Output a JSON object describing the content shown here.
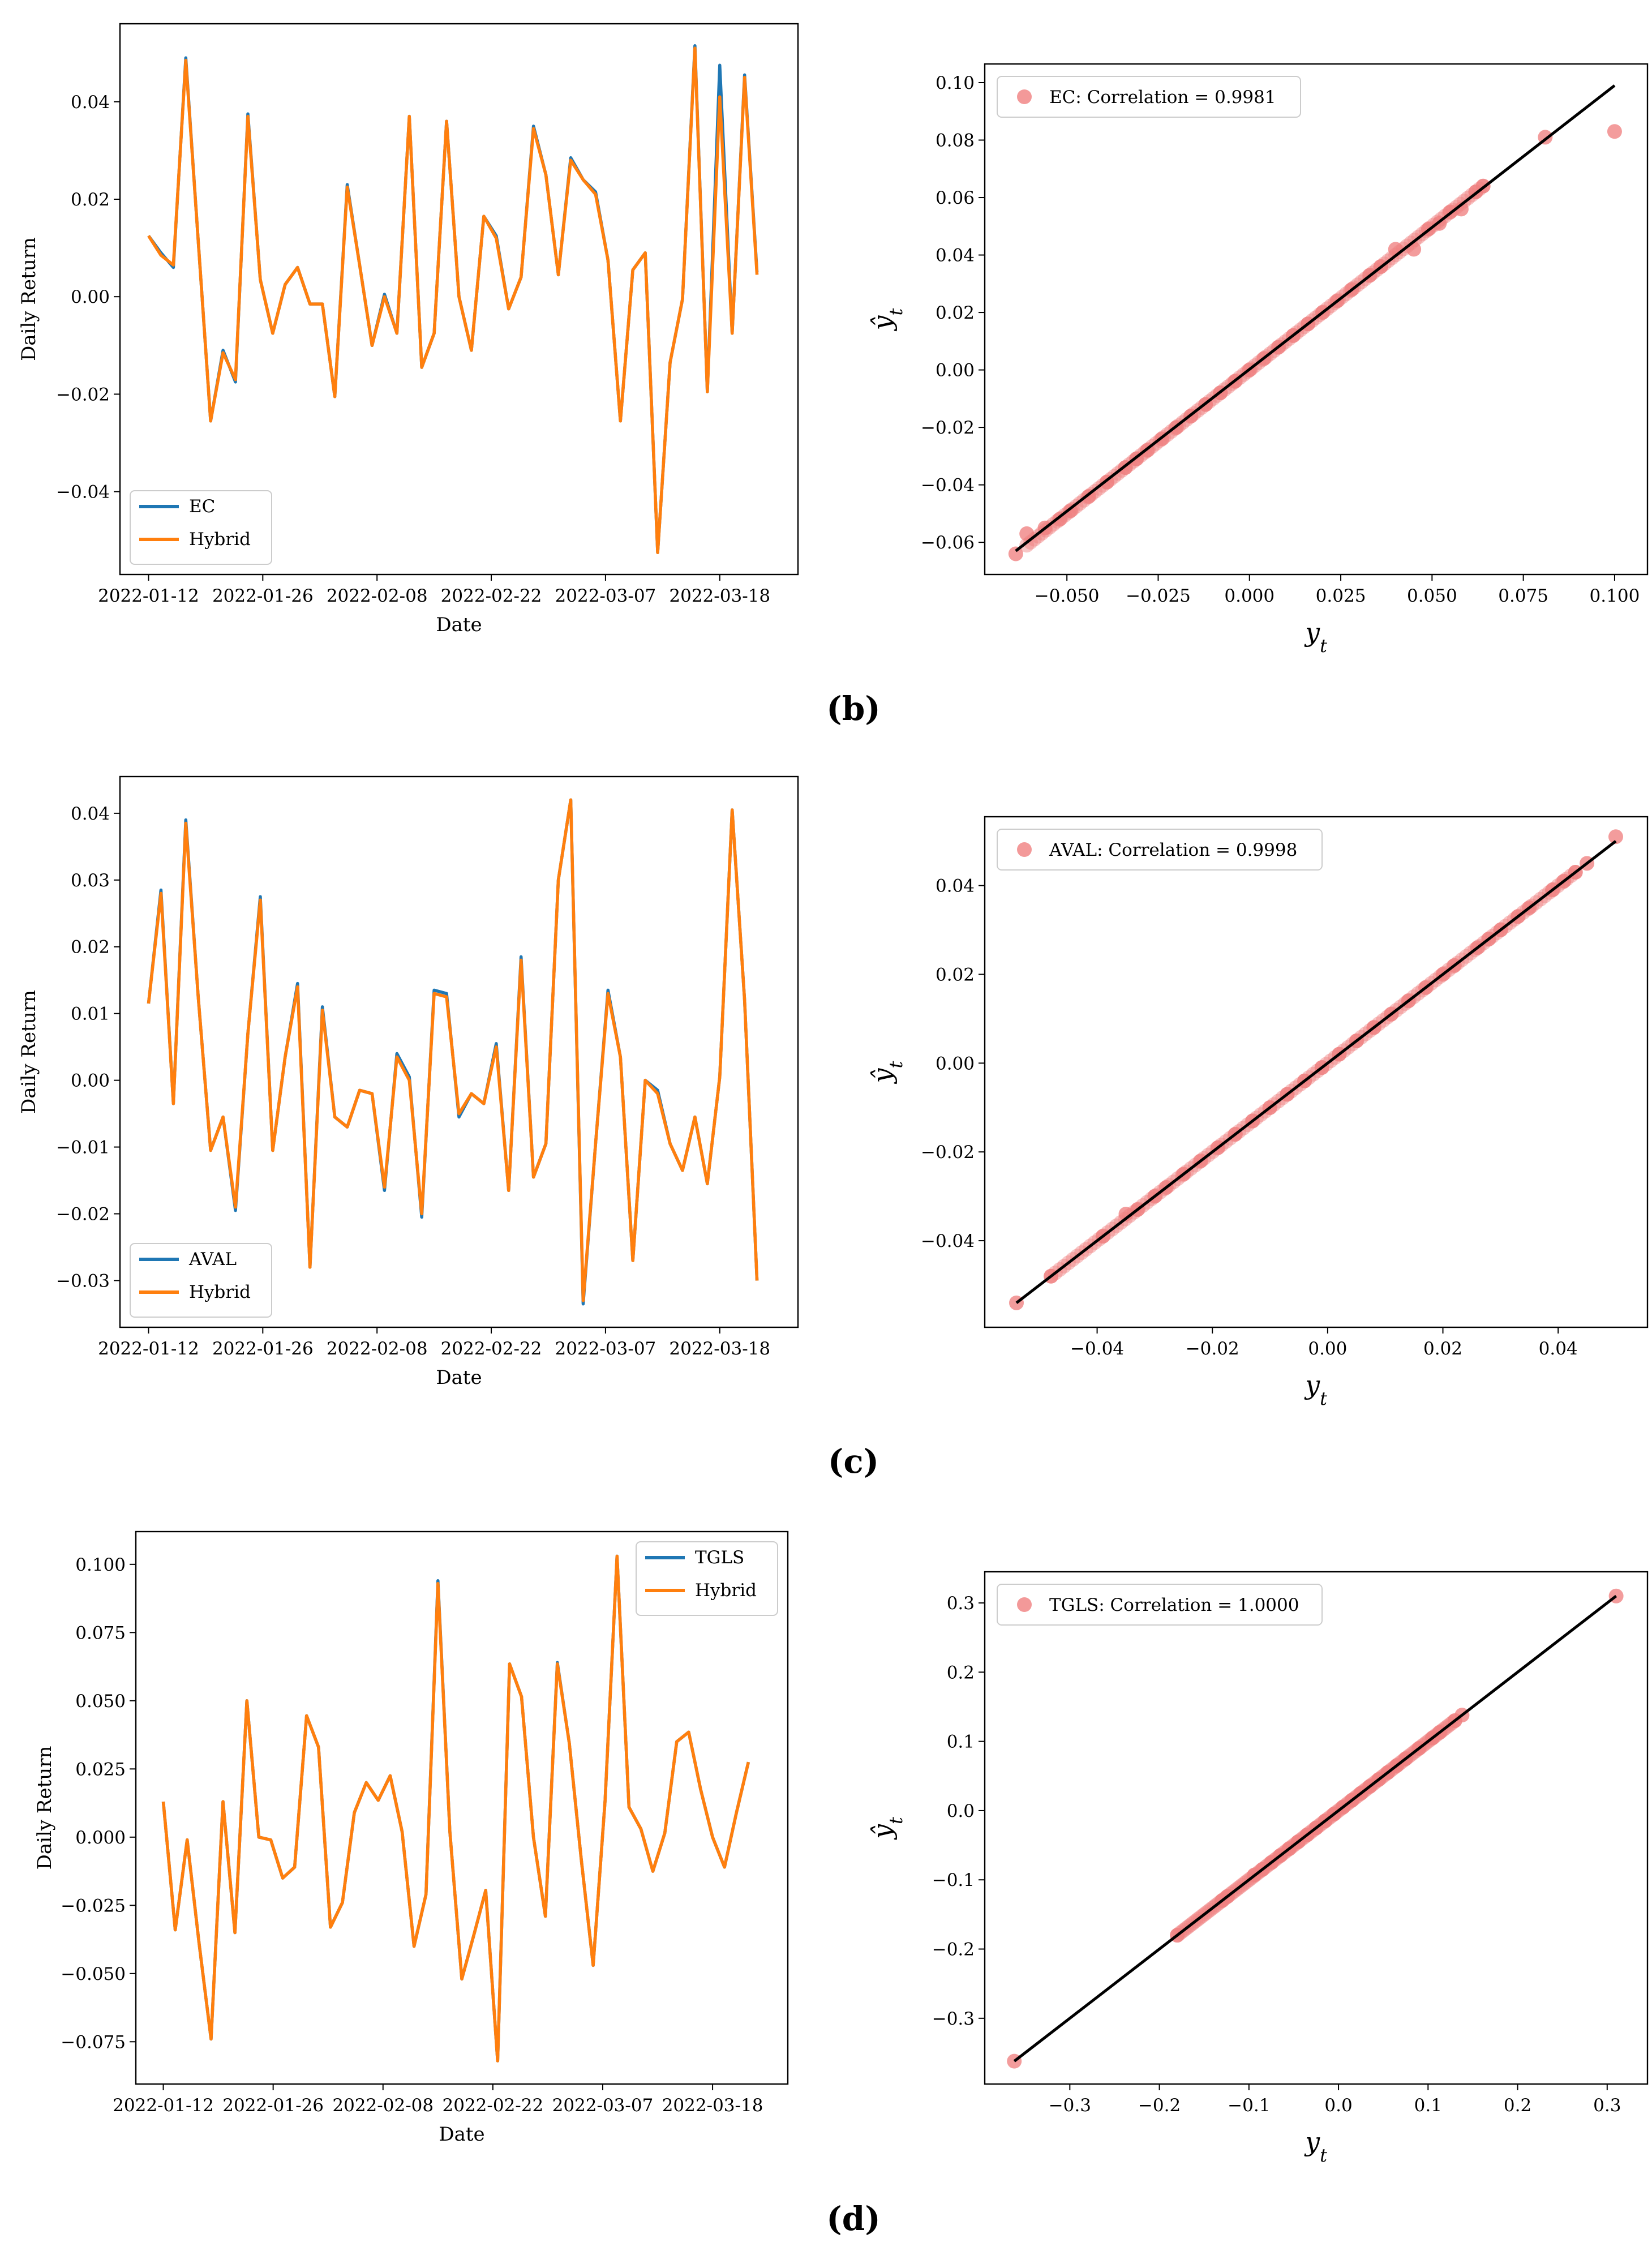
{
  "colors": {
    "actual_line": "#1f77b4",
    "hybrid_line": "#ff7f0e",
    "scatter_point": "#f08080",
    "fit_line": "#000000",
    "axes": "#000000",
    "background": "#ffffff"
  },
  "panel_labels": [
    "(b)",
    "(c)",
    "(d)"
  ],
  "chart_data": [
    {
      "type": "line",
      "panel": "(b)",
      "xlabel": "Date",
      "ylabel": "Daily Return",
      "legend_position": "lower-left",
      "tick_labels_x": [
        "2022-01-12",
        "2022-01-26",
        "2022-02-08",
        "2022-02-22",
        "2022-03-07",
        "2022-03-18"
      ],
      "tick_labels_y": [
        "−0.04",
        "−0.02",
        "0.00",
        "0.02",
        "0.04"
      ],
      "yticks": [
        -0.04,
        -0.02,
        0.0,
        0.02,
        0.04
      ],
      "ylim": [
        -0.057,
        0.056
      ],
      "x": [
        0,
        1,
        2,
        3,
        4,
        5,
        6,
        7,
        8,
        9,
        10,
        11,
        12,
        13,
        14,
        15,
        16,
        17,
        18,
        19,
        20,
        21,
        22,
        23,
        24,
        25,
        26,
        27,
        28,
        29,
        30,
        31,
        32,
        33,
        34,
        35,
        36,
        37,
        38,
        39,
        40,
        41,
        42,
        43,
        44,
        45,
        46,
        47,
        48,
        49
      ],
      "xlim": [
        -2.3,
        52.3
      ],
      "series": [
        {
          "name": "EC",
          "values": [
            0.0125,
            0.009,
            0.006,
            0.049,
            0.0115,
            -0.0255,
            -0.011,
            -0.0175,
            0.0375,
            0.0035,
            -0.0075,
            0.0025,
            0.006,
            -0.0015,
            -0.0015,
            -0.0205,
            0.023,
            0.0065,
            -0.01,
            0.0005,
            -0.0075,
            0.037,
            -0.0145,
            -0.0075,
            0.036,
            0.0,
            -0.011,
            0.0165,
            0.0125,
            -0.0025,
            0.004,
            0.035,
            0.025,
            0.0045,
            0.0285,
            0.024,
            0.0215,
            0.0075,
            -0.0255,
            0.0055,
            0.009,
            -0.0525,
            -0.0135,
            -0.0005,
            0.0515,
            -0.0195,
            0.0475,
            -0.0075,
            0.0455,
            0.005
          ]
        },
        {
          "name": "Hybrid",
          "values": [
            0.0125,
            0.0085,
            0.0065,
            0.0485,
            0.0115,
            -0.0255,
            -0.0115,
            -0.017,
            0.037,
            0.0035,
            -0.0075,
            0.0025,
            0.006,
            -0.0015,
            -0.0015,
            -0.0205,
            0.0225,
            0.0065,
            -0.01,
            0.0,
            -0.0075,
            0.037,
            -0.0145,
            -0.0075,
            0.036,
            0.0,
            -0.011,
            0.0165,
            0.012,
            -0.0025,
            0.004,
            0.0345,
            0.025,
            0.0045,
            0.028,
            0.024,
            0.021,
            0.0075,
            -0.0255,
            0.0055,
            0.009,
            -0.0525,
            -0.0135,
            -0.0005,
            0.051,
            -0.0195,
            0.041,
            -0.0075,
            0.045,
            0.0045
          ]
        }
      ]
    },
    {
      "type": "scatter",
      "panel": "(b)",
      "xlabel": "y_t",
      "ylabel": "ŷ_t",
      "legend": "EC: Correlation = 0.9981",
      "legend_position": "top-left",
      "correlation": 0.9981,
      "tick_labels_x": [
        "−0.050",
        "−0.025",
        "0.000",
        "0.025",
        "0.050",
        "0.075",
        "0.100"
      ],
      "tick_labels_y": [
        "−0.06",
        "−0.04",
        "−0.02",
        "0.00",
        "0.02",
        "0.04",
        "0.06",
        "0.08",
        "0.10"
      ],
      "xticks": [
        -0.05,
        -0.025,
        0.0,
        0.025,
        0.05,
        0.075,
        0.1
      ],
      "yticks": [
        -0.06,
        -0.04,
        -0.02,
        0.0,
        0.02,
        0.04,
        0.06,
        0.08,
        0.1
      ],
      "xlim": [
        -0.0725,
        0.109
      ],
      "ylim": [
        -0.0712,
        0.1065
      ],
      "fit_line": {
        "x": [
          -0.064,
          0.1
        ],
        "y": [
          -0.063,
          0.099
        ]
      },
      "points": [
        [
          -0.064,
          -0.064
        ],
        [
          -0.061,
          -0.057
        ],
        [
          -0.056,
          -0.055
        ],
        [
          -0.052,
          -0.052
        ],
        [
          -0.049,
          -0.049
        ],
        [
          -0.044,
          -0.044
        ],
        [
          -0.039,
          -0.039
        ],
        [
          -0.034,
          -0.034
        ],
        [
          -0.031,
          -0.031
        ],
        [
          -0.028,
          -0.028
        ],
        [
          -0.024,
          -0.024
        ],
        [
          -0.02,
          -0.02
        ],
        [
          -0.016,
          -0.016
        ],
        [
          -0.012,
          -0.012
        ],
        [
          -0.008,
          -0.008
        ],
        [
          -0.004,
          -0.004
        ],
        [
          0.0,
          0.0
        ],
        [
          0.004,
          0.004
        ],
        [
          0.008,
          0.008
        ],
        [
          0.012,
          0.012
        ],
        [
          0.016,
          0.016
        ],
        [
          0.02,
          0.02
        ],
        [
          0.024,
          0.024
        ],
        [
          0.028,
          0.028
        ],
        [
          0.033,
          0.033
        ],
        [
          0.036,
          0.036
        ],
        [
          0.04,
          0.042
        ],
        [
          0.045,
          0.042
        ],
        [
          0.049,
          0.049
        ],
        [
          0.052,
          0.051
        ],
        [
          0.055,
          0.055
        ],
        [
          0.058,
          0.056
        ],
        [
          0.062,
          0.062
        ],
        [
          0.064,
          0.064
        ],
        [
          0.081,
          0.081
        ],
        [
          0.1,
          0.083
        ]
      ]
    },
    {
      "type": "line",
      "panel": "(c)",
      "xlabel": "Date",
      "ylabel": "Daily Return",
      "legend_position": "lower-left",
      "tick_labels_x": [
        "2022-01-12",
        "2022-01-26",
        "2022-02-08",
        "2022-02-22",
        "2022-03-07",
        "2022-03-18"
      ],
      "tick_labels_y": [
        "−0.03",
        "−0.02",
        "−0.01",
        "0.00",
        "0.01",
        "0.02",
        "0.03",
        "0.04"
      ],
      "yticks": [
        -0.03,
        -0.02,
        -0.01,
        0.0,
        0.01,
        0.02,
        0.03,
        0.04
      ],
      "ylim": [
        -0.037,
        0.0455
      ],
      "x": [
        0,
        1,
        2,
        3,
        4,
        5,
        6,
        7,
        8,
        9,
        10,
        11,
        12,
        13,
        14,
        15,
        16,
        17,
        18,
        19,
        20,
        21,
        22,
        23,
        24,
        25,
        26,
        27,
        28,
        29,
        30,
        31,
        32,
        33,
        34,
        35,
        36,
        37,
        38,
        39,
        40,
        41,
        42,
        43,
        44,
        45,
        46,
        47,
        48,
        49
      ],
      "xlim": [
        -2.3,
        52.3
      ],
      "series": [
        {
          "name": "AVAL",
          "values": [
            0.0115,
            0.0285,
            -0.0035,
            0.039,
            0.0125,
            -0.0105,
            -0.0055,
            -0.0195,
            0.007,
            0.0275,
            -0.0105,
            0.0035,
            0.0145,
            -0.028,
            0.011,
            -0.0055,
            -0.007,
            -0.0015,
            -0.002,
            -0.0165,
            0.004,
            0.0005,
            -0.0205,
            0.0135,
            0.013,
            -0.0055,
            -0.002,
            -0.0035,
            0.0055,
            -0.0165,
            0.0185,
            -0.0145,
            -0.0095,
            0.03,
            0.042,
            -0.0335,
            -0.0095,
            0.0135,
            0.0035,
            -0.027,
            0.0,
            -0.0015,
            -0.0095,
            -0.0135,
            -0.0055,
            -0.0155,
            0.0005,
            0.0405,
            0.012,
            -0.03
          ]
        },
        {
          "name": "Hybrid",
          "values": [
            0.0115,
            0.028,
            -0.0035,
            0.0385,
            0.0125,
            -0.0105,
            -0.0055,
            -0.019,
            0.007,
            0.027,
            -0.0105,
            0.0035,
            0.014,
            -0.028,
            0.0105,
            -0.0055,
            -0.007,
            -0.0015,
            -0.002,
            -0.016,
            0.0035,
            0.0,
            -0.02,
            0.013,
            0.0125,
            -0.005,
            -0.002,
            -0.0035,
            0.005,
            -0.0165,
            0.018,
            -0.0145,
            -0.0095,
            0.03,
            0.042,
            -0.033,
            -0.0095,
            0.013,
            0.0035,
            -0.027,
            0.0,
            -0.002,
            -0.0095,
            -0.0135,
            -0.0055,
            -0.0155,
            0.0005,
            0.0405,
            0.012,
            -0.03
          ]
        }
      ]
    },
    {
      "type": "scatter",
      "panel": "(c)",
      "xlabel": "y_t",
      "ylabel": "ŷ_t",
      "legend": "AVAL: Correlation = 0.9998",
      "legend_position": "top-left",
      "correlation": 0.9998,
      "tick_labels_x": [
        "−0.04",
        "−0.02",
        "0.00",
        "0.02",
        "0.04"
      ],
      "tick_labels_y": [
        "−0.04",
        "−0.02",
        "0.00",
        "0.02",
        "0.04"
      ],
      "xticks": [
        -0.04,
        -0.02,
        0.0,
        0.02,
        0.04
      ],
      "yticks": [
        -0.04,
        -0.02,
        0.0,
        0.02,
        0.04
      ],
      "xlim": [
        -0.0595,
        0.0555
      ],
      "ylim": [
        -0.0595,
        0.0555
      ],
      "fit_line": {
        "x": [
          -0.054,
          0.05
        ],
        "y": [
          -0.054,
          0.05
        ]
      },
      "points": [
        [
          -0.054,
          -0.054
        ],
        [
          -0.048,
          -0.048
        ],
        [
          -0.039,
          -0.039
        ],
        [
          -0.035,
          -0.034
        ],
        [
          -0.033,
          -0.033
        ],
        [
          -0.03,
          -0.03
        ],
        [
          -0.028,
          -0.028
        ],
        [
          -0.025,
          -0.025
        ],
        [
          -0.022,
          -0.022
        ],
        [
          -0.019,
          -0.019
        ],
        [
          -0.016,
          -0.016
        ],
        [
          -0.013,
          -0.013
        ],
        [
          -0.01,
          -0.01
        ],
        [
          -0.007,
          -0.007
        ],
        [
          -0.004,
          -0.004
        ],
        [
          -0.001,
          -0.001
        ],
        [
          0.002,
          0.002
        ],
        [
          0.005,
          0.005
        ],
        [
          0.008,
          0.008
        ],
        [
          0.011,
          0.011
        ],
        [
          0.014,
          0.014
        ],
        [
          0.017,
          0.017
        ],
        [
          0.02,
          0.02
        ],
        [
          0.022,
          0.022
        ],
        [
          0.026,
          0.026
        ],
        [
          0.028,
          0.028
        ],
        [
          0.03,
          0.03
        ],
        [
          0.033,
          0.033
        ],
        [
          0.035,
          0.035
        ],
        [
          0.039,
          0.039
        ],
        [
          0.041,
          0.041
        ],
        [
          0.043,
          0.043
        ],
        [
          0.045,
          0.045
        ],
        [
          0.05,
          0.051
        ]
      ]
    },
    {
      "type": "line",
      "panel": "(d)",
      "xlabel": "Date",
      "ylabel": "Daily Return",
      "legend_position": "top-right",
      "tick_labels_x": [
        "2022-01-12",
        "2022-01-26",
        "2022-02-08",
        "2022-02-22",
        "2022-03-07",
        "2022-03-18"
      ],
      "tick_labels_y": [
        "−0.075",
        "−0.050",
        "−0.025",
        "0.000",
        "0.025",
        "0.050",
        "0.075",
        "0.100"
      ],
      "yticks": [
        -0.075,
        -0.05,
        -0.025,
        0.0,
        0.025,
        0.05,
        0.075,
        0.1
      ],
      "ylim": [
        -0.0905,
        0.112
      ],
      "x": [
        0,
        1,
        2,
        3,
        4,
        5,
        6,
        7,
        8,
        9,
        10,
        11,
        12,
        13,
        14,
        15,
        16,
        17,
        18,
        19,
        20,
        21,
        22,
        23,
        24,
        25,
        26,
        27,
        28,
        29,
        30,
        31,
        32,
        33,
        34,
        35,
        36,
        37,
        38,
        39,
        40,
        41,
        42,
        43,
        44,
        45,
        46,
        47,
        48,
        49
      ],
      "xlim": [
        -2.3,
        52.3
      ],
      "series": [
        {
          "name": "TGLS",
          "values": [
            0.013,
            -0.034,
            -0.001,
            -0.039,
            -0.074,
            0.013,
            -0.035,
            0.05,
            0.0,
            -0.001,
            -0.015,
            -0.011,
            0.0445,
            0.033,
            -0.033,
            -0.024,
            0.009,
            0.02,
            0.0135,
            0.0225,
            0.002,
            -0.04,
            -0.021,
            0.094,
            0.002,
            -0.052,
            -0.036,
            -0.0195,
            -0.082,
            0.0635,
            0.0515,
            0.0,
            -0.029,
            0.064,
            0.0345,
            -0.008,
            -0.047,
            0.0135,
            0.103,
            0.011,
            0.003,
            -0.0125,
            0.0015,
            0.035,
            0.0385,
            0.0175,
            0.0,
            -0.011,
            0.009,
            0.0275
          ]
        },
        {
          "name": "Hybrid",
          "values": [
            0.013,
            -0.034,
            -0.001,
            -0.039,
            -0.074,
            0.013,
            -0.035,
            0.05,
            0.0,
            -0.001,
            -0.015,
            -0.011,
            0.0445,
            0.033,
            -0.033,
            -0.024,
            0.009,
            0.02,
            0.0135,
            0.0225,
            0.002,
            -0.04,
            -0.021,
            0.093,
            0.002,
            -0.052,
            -0.036,
            -0.0195,
            -0.082,
            0.0635,
            0.0515,
            0.0,
            -0.029,
            0.0635,
            0.0345,
            -0.008,
            -0.047,
            0.0135,
            0.103,
            0.011,
            0.003,
            -0.0125,
            0.0015,
            0.035,
            0.0385,
            0.0175,
            0.0,
            -0.011,
            0.009,
            0.0275
          ]
        }
      ]
    },
    {
      "type": "scatter",
      "panel": "(d)",
      "xlabel": "y_t",
      "ylabel": "ŷ_t",
      "legend": "TGLS: Correlation = 1.0000",
      "legend_position": "top-left",
      "correlation": 1.0,
      "tick_labels_x": [
        "−0.3",
        "−0.2",
        "−0.1",
        "0.0",
        "0.1",
        "0.2",
        "0.3"
      ],
      "tick_labels_y": [
        "−0.3",
        "−0.2",
        "−0.1",
        "0.0",
        "0.1",
        "0.2",
        "0.3"
      ],
      "xticks": [
        -0.3,
        -0.2,
        -0.1,
        0.0,
        0.1,
        0.2,
        0.3
      ],
      "yticks": [
        -0.3,
        -0.2,
        -0.1,
        0.0,
        0.1,
        0.2,
        0.3
      ],
      "xlim": [
        -0.395,
        0.345
      ],
      "ylim": [
        -0.395,
        0.345
      ],
      "fit_line": {
        "x": [
          -0.362,
          0.31
        ],
        "y": [
          -0.362,
          0.31
        ]
      },
      "points": [
        [
          -0.362,
          -0.362
        ],
        [
          -0.18,
          -0.18
        ],
        [
          -0.13,
          -0.13
        ],
        [
          -0.124,
          -0.124
        ],
        [
          -0.094,
          -0.093
        ],
        [
          -0.085,
          -0.085
        ],
        [
          -0.075,
          -0.075
        ],
        [
          -0.065,
          -0.065
        ],
        [
          -0.055,
          -0.055
        ],
        [
          -0.045,
          -0.045
        ],
        [
          -0.035,
          -0.035
        ],
        [
          -0.025,
          -0.025
        ],
        [
          -0.015,
          -0.015
        ],
        [
          -0.005,
          -0.005
        ],
        [
          0.005,
          0.005
        ],
        [
          0.015,
          0.015
        ],
        [
          0.025,
          0.025
        ],
        [
          0.035,
          0.035
        ],
        [
          0.045,
          0.045
        ],
        [
          0.055,
          0.055
        ],
        [
          0.065,
          0.065
        ],
        [
          0.075,
          0.075
        ],
        [
          0.09,
          0.09
        ],
        [
          0.105,
          0.105
        ],
        [
          0.113,
          0.113
        ],
        [
          0.13,
          0.13
        ],
        [
          0.138,
          0.138
        ],
        [
          0.31,
          0.31
        ]
      ]
    }
  ]
}
